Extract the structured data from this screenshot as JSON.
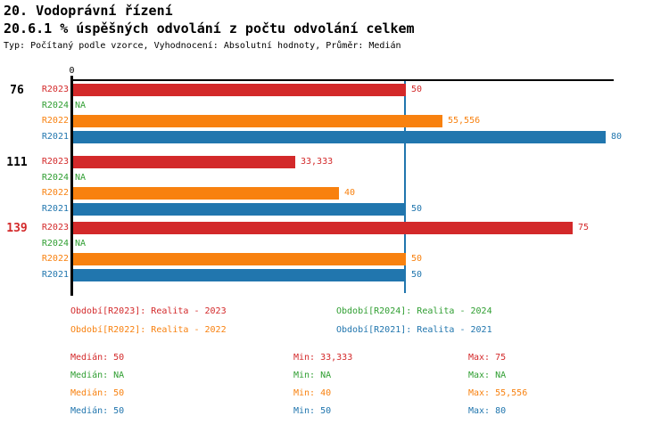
{
  "header": {
    "title": "20. Vodoprávní řízení",
    "subtitle": "20.6.1 % úspěšných odvolání z počtu odvolání celkem",
    "meta": "Typ: Počítaný podle vzorce, Vyhodnocení: Absolutní hodnoty, Průměr: Medián"
  },
  "colors": {
    "series": {
      "R2023": "#d3292a",
      "R2024": "#2f9e31",
      "R2022": "#f8810f",
      "R2021": "#2176ae"
    },
    "axis": "#000000",
    "median_line": "#2176ae",
    "group_label_default": "#000000",
    "group_label_highlight": "#d3292a"
  },
  "chart_data": {
    "type": "bar",
    "orientation": "horizontal",
    "title": "20.6.1 % úspěšných odvolání z počtu odvolání celkem",
    "xlabel": "",
    "ylabel": "",
    "x_axis": {
      "min": 0,
      "max": 81,
      "origin_tick_label": "0",
      "gridlines": false
    },
    "median_line_value": 50,
    "series_order": [
      "R2023",
      "R2024",
      "R2022",
      "R2021"
    ],
    "groups": [
      {
        "label": "76",
        "highlighted": false,
        "bars": [
          {
            "series": "R2023",
            "value": 50,
            "display": "50"
          },
          {
            "series": "R2024",
            "value": null,
            "display": "NA"
          },
          {
            "series": "R2022",
            "value": 55.556,
            "display": "55,556"
          },
          {
            "series": "R2021",
            "value": 80,
            "display": "80"
          }
        ]
      },
      {
        "label": "111",
        "highlighted": false,
        "bars": [
          {
            "series": "R2023",
            "value": 33.333,
            "display": "33,333"
          },
          {
            "series": "R2024",
            "value": null,
            "display": "NA"
          },
          {
            "series": "R2022",
            "value": 40,
            "display": "40"
          },
          {
            "series": "R2021",
            "value": 50,
            "display": "50"
          }
        ]
      },
      {
        "label": "139",
        "highlighted": true,
        "bars": [
          {
            "series": "R2023",
            "value": 75,
            "display": "75"
          },
          {
            "series": "R2024",
            "value": null,
            "display": "NA"
          },
          {
            "series": "R2022",
            "value": 50,
            "display": "50"
          },
          {
            "series": "R2021",
            "value": 50,
            "display": "50"
          }
        ]
      }
    ]
  },
  "legend": {
    "items": [
      {
        "series": "R2023",
        "label": "Období[R2023]: Realita - 2023"
      },
      {
        "series": "R2024",
        "label": "Období[R2024]: Realita - 2024"
      },
      {
        "series": "R2022",
        "label": "Období[R2022]: Realita - 2022"
      },
      {
        "series": "R2021",
        "label": "Období[R2021]: Realita - 2021"
      }
    ]
  },
  "stats": {
    "rows": [
      {
        "series": "R2023",
        "median": "Medián: 50",
        "min": "Min: 33,333",
        "max": "Max: 75"
      },
      {
        "series": "R2024",
        "median": "Medián: NA",
        "min": "Min: NA",
        "max": "Max: NA"
      },
      {
        "series": "R2022",
        "median": "Medián: 50",
        "min": "Min: 40",
        "max": "Max: 55,556"
      },
      {
        "series": "R2021",
        "median": "Medián: 50",
        "min": "Min: 50",
        "max": "Max: 80"
      }
    ]
  }
}
